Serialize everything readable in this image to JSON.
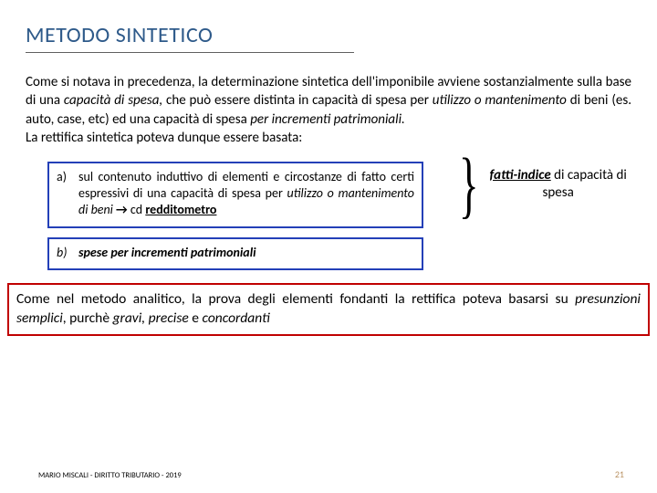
{
  "title": "METODO SINTETICO",
  "para1_a": "Come si notava in precedenza, la determinazione sintetica dell'imponibile avviene sostanzialmente sulla base di una ",
  "para1_b": "capacità di spesa,",
  "para1_c": " che può essere distinta in capacità di spesa per ",
  "para1_d": "utilizzo o mantenimento",
  "para1_e": " di beni (es. auto, case, etc) ed una capacità di spesa ",
  "para1_f": "per incrementi patrimoniali.",
  "para1_g": "La rettifica sintetica poteva dunque essere basata:",
  "item_a_label": "a)",
  "item_a_1": "sul contenuto induttivo di elementi e circostanze di fatto certi espressivi di una capacità di spesa per ",
  "item_a_2": "utilizzo o mantenimento di beni",
  "item_a_arrow": " → ",
  "item_a_3": "cd ",
  "item_a_4": "redditometro",
  "item_b_label": "b)",
  "item_b_text": "spese per incrementi patrimoniali",
  "brace_1": "fatti-indice",
  "brace_2": " di capacità di spesa",
  "red_1": "Come nel metodo analitico, la prova degli elementi fondanti la rettifica poteva basarsi su ",
  "red_2": "presunzioni semplici",
  "red_3": ", purchè ",
  "red_4": "gravi, precise",
  "red_5": " e ",
  "red_6": "concordanti",
  "footer": "MARIO MISCALI - DIRITTO TRIBUTARIO - 2019",
  "pagenum": "21",
  "colors": {
    "title": "#2e5a8a",
    "blue_border": "#2440b8",
    "red_border": "#c00000",
    "pagenum": "#b89060"
  }
}
